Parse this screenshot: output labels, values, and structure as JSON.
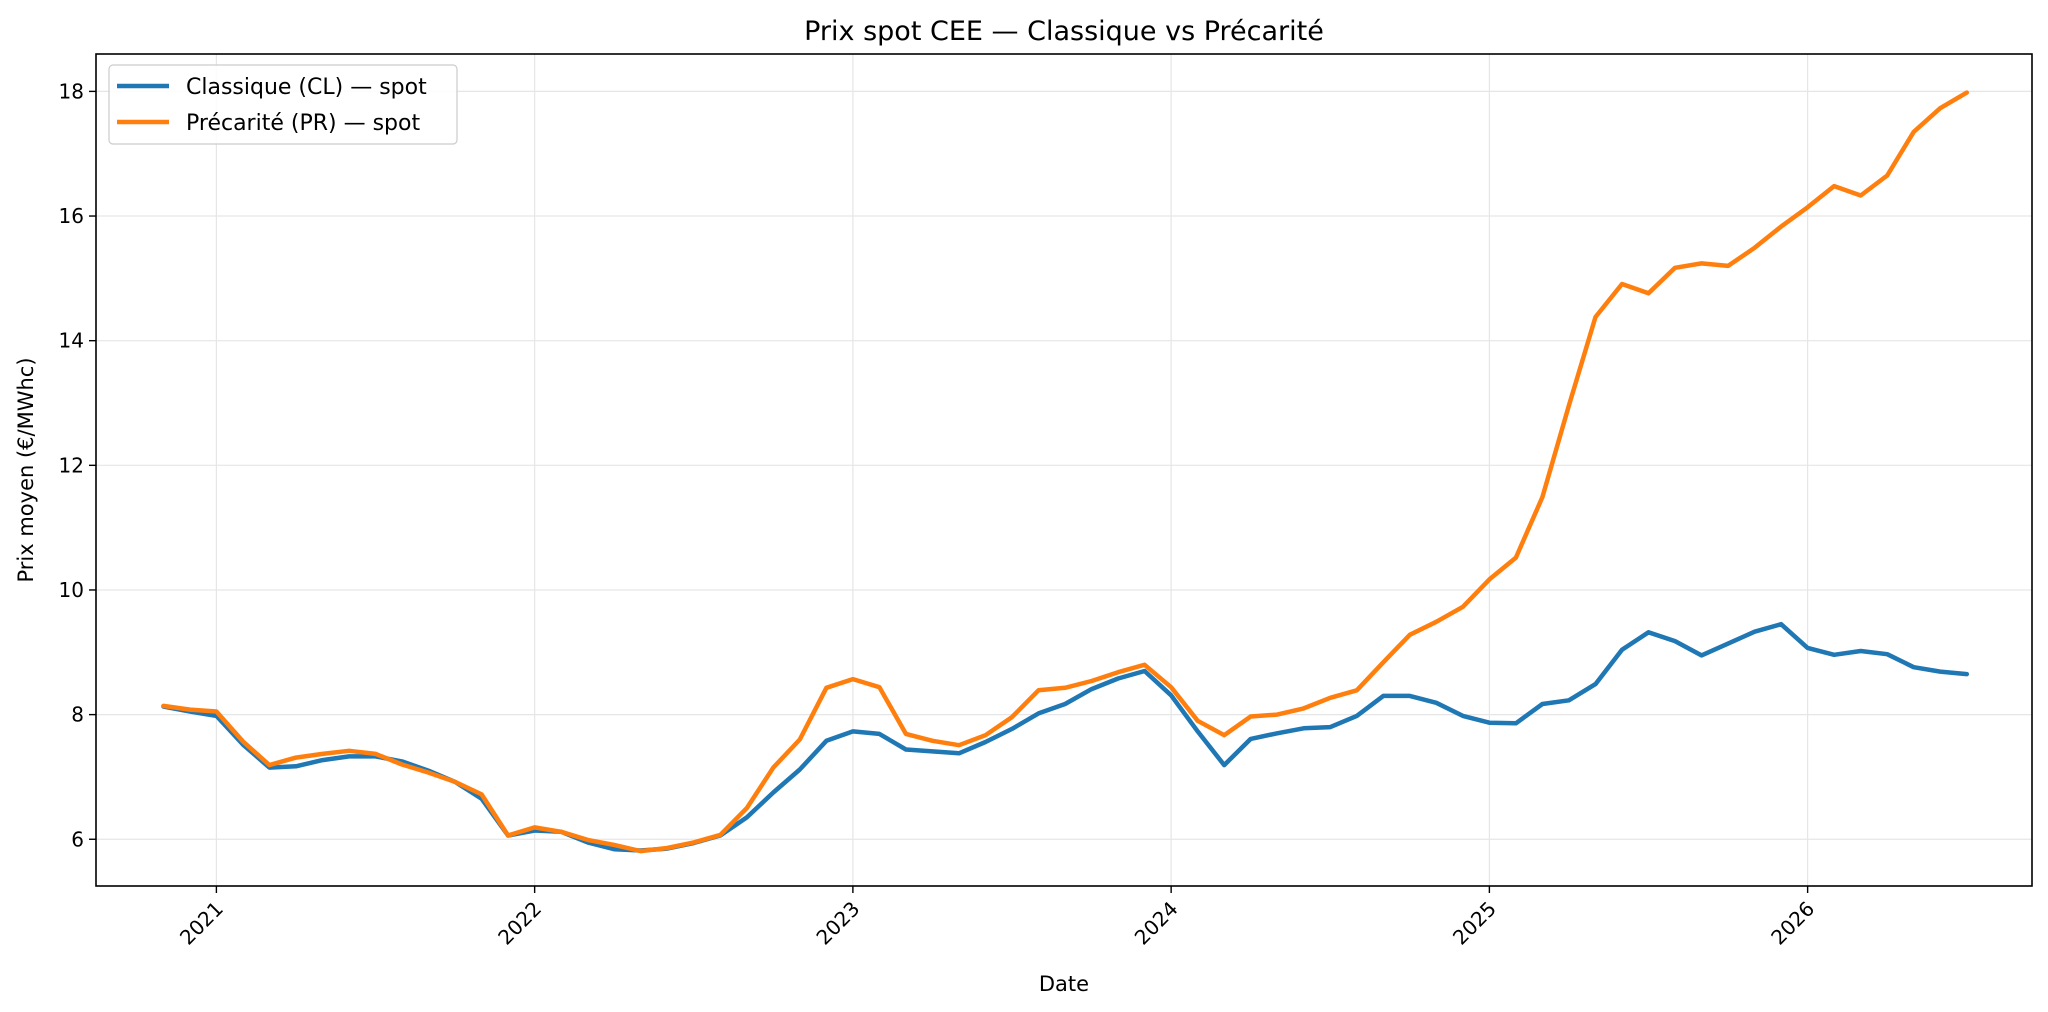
{
  "chart_data": {
    "type": "line",
    "title": "Prix spot CEE — Classique vs Précarité",
    "xlabel": "Date",
    "ylabel": "Prix moyen (€/MWhc)",
    "x_ticks": [
      "2021",
      "2022",
      "2023",
      "2024",
      "2025",
      "2026"
    ],
    "y_ticks": [
      6,
      8,
      10,
      12,
      14,
      16,
      18
    ],
    "ylim": [
      5.25,
      18.6
    ],
    "xlim": [
      "2020-08-15",
      "2026-09-15"
    ],
    "grid": true,
    "legend_position": "top-left",
    "x": [
      "2020-11",
      "2020-12",
      "2021-01",
      "2021-02",
      "2021-03",
      "2021-04",
      "2021-05",
      "2021-06",
      "2021-07",
      "2021-08",
      "2021-09",
      "2021-10",
      "2021-11",
      "2021-12",
      "2022-01",
      "2022-02",
      "2022-03",
      "2022-04",
      "2022-05",
      "2022-06",
      "2022-07",
      "2022-08",
      "2022-09",
      "2022-10",
      "2022-11",
      "2022-12",
      "2023-01",
      "2023-02",
      "2023-03",
      "2023-04",
      "2023-05",
      "2023-06",
      "2023-07",
      "2023-08",
      "2023-09",
      "2023-10",
      "2023-11",
      "2023-12",
      "2024-01",
      "2024-02",
      "2024-03",
      "2024-04",
      "2024-05",
      "2024-06",
      "2024-07",
      "2024-08",
      "2024-09",
      "2024-10",
      "2024-11",
      "2024-12",
      "2025-01",
      "2025-02",
      "2025-03",
      "2025-04",
      "2025-05",
      "2025-06",
      "2025-07",
      "2025-08",
      "2025-09",
      "2025-10",
      "2025-11",
      "2025-12",
      "2026-01",
      "2026-02",
      "2026-03",
      "2026-04",
      "2026-05",
      "2026-06",
      "2026-07"
    ],
    "series": [
      {
        "name": "Classique (CL) — spot",
        "color": "#1f77b4",
        "values": [
          8.13,
          8.05,
          7.98,
          7.52,
          7.15,
          7.17,
          7.27,
          7.33,
          7.33,
          7.25,
          7.1,
          6.92,
          6.65,
          6.06,
          6.14,
          6.12,
          5.95,
          5.84,
          5.82,
          5.85,
          5.94,
          6.06,
          6.35,
          6.75,
          7.12,
          7.58,
          7.73,
          7.69,
          7.44,
          7.41,
          7.38,
          7.56,
          7.77,
          8.02,
          8.17,
          8.41,
          8.58,
          8.7,
          8.31,
          7.73,
          7.19,
          7.61,
          7.7,
          7.78,
          7.8,
          7.98,
          8.3,
          8.3,
          8.19,
          7.98,
          7.87,
          7.86,
          8.17,
          8.23,
          8.49,
          9.04,
          9.32,
          9.18,
          8.95,
          9.14,
          9.33,
          9.45,
          9.07,
          8.96,
          9.02,
          8.97,
          8.76,
          8.69,
          8.65
        ]
      },
      {
        "name": "Précarité (PR) — spot",
        "color": "#ff7f0e",
        "values": [
          8.14,
          8.08,
          8.05,
          7.57,
          7.19,
          7.31,
          7.37,
          7.42,
          7.37,
          7.2,
          7.07,
          6.92,
          6.72,
          6.06,
          6.19,
          6.12,
          5.99,
          5.91,
          5.81,
          5.86,
          5.95,
          6.07,
          6.5,
          7.15,
          7.6,
          8.43,
          8.57,
          8.44,
          7.69,
          7.58,
          7.51,
          7.67,
          7.96,
          8.39,
          8.43,
          8.54,
          8.68,
          8.8,
          8.44,
          7.9,
          7.67,
          7.97,
          8.0,
          8.1,
          8.27,
          8.39,
          8.84,
          9.28,
          9.49,
          9.73,
          10.17,
          10.52,
          11.49,
          12.96,
          14.38,
          14.91,
          14.76,
          15.17,
          15.24,
          15.2,
          15.49,
          15.83,
          16.14,
          16.48,
          16.33,
          16.65,
          17.35,
          17.73,
          17.98
        ]
      }
    ]
  }
}
